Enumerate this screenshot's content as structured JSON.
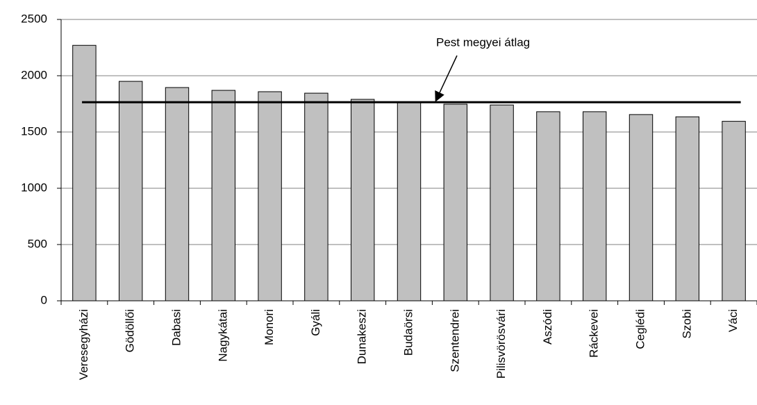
{
  "chart_data": {
    "type": "bar",
    "categories": [
      "Veresegyházi",
      "Gödöllői",
      "Dabasi",
      "Nagykátai",
      "Monori",
      "Gyáli",
      "Dunakeszi",
      "Budaörsi",
      "Szentendrei",
      "Pilisvörösvári",
      "Aszódi",
      "Ráckevei",
      "Ceglédi",
      "Szobi",
      "Váci"
    ],
    "values": [
      2270,
      1950,
      1895,
      1870,
      1858,
      1845,
      1790,
      1765,
      1747,
      1740,
      1680,
      1680,
      1655,
      1635,
      1595
    ],
    "color": "#c0c0c0",
    "average": {
      "name": "Pest megyei átlag",
      "value": 1765,
      "color": "#000000"
    },
    "ylim": [
      0,
      2500
    ],
    "yticks": [
      0,
      500,
      1000,
      1500,
      2000,
      2500
    ],
    "grid": true
  }
}
